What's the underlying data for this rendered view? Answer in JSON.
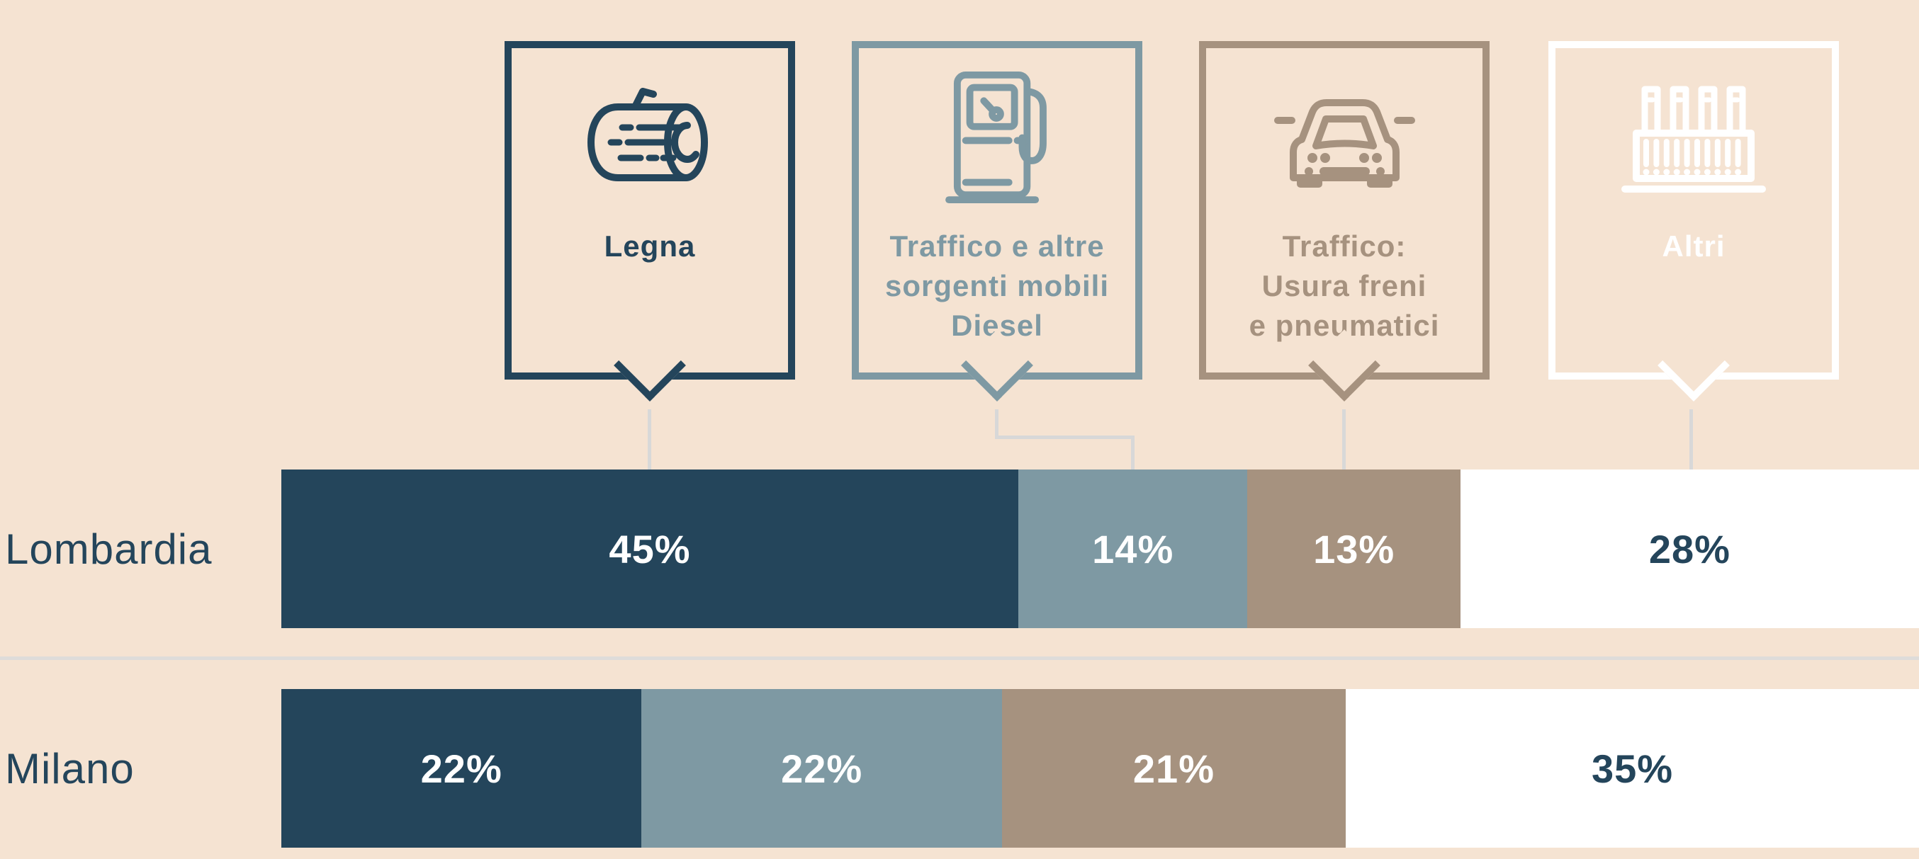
{
  "background_color": "#f5e3d2",
  "text_color": "#24455b",
  "divider_color": "#dedcda",
  "connector_color": "#d8d8d8",
  "legend": {
    "items": [
      {
        "name": "legna",
        "color": "#24455b",
        "icon": "log-icon",
        "lines": [
          "Legna"
        ]
      },
      {
        "name": "traffico-diesel",
        "color": "#7e99a3",
        "icon": "fuel-pump-icon",
        "lines": [
          "Traffico e altre",
          "sorgenti mobili",
          "Diesel"
        ]
      },
      {
        "name": "traffico-usura",
        "color": "#a6927f",
        "icon": "car-icon",
        "lines": [
          "Traffico:",
          "Usura freni",
          "e pneumatici"
        ]
      },
      {
        "name": "altri",
        "color": "#ffffff",
        "icon": "factory-icon",
        "lines": [
          "Altri"
        ]
      }
    ]
  },
  "rows": [
    {
      "label": "Lombardia",
      "segments": [
        {
          "text": "45%",
          "pct": 45,
          "bg": "#24455b",
          "fg": "#ffffff"
        },
        {
          "text": "14%",
          "pct": 14,
          "bg": "#7e99a3",
          "fg": "#ffffff"
        },
        {
          "text": "13%",
          "pct": 13,
          "bg": "#a6927f",
          "fg": "#ffffff"
        },
        {
          "text": "28%",
          "pct": 28,
          "bg": "#ffffff",
          "fg": "#24455b"
        }
      ]
    },
    {
      "label": "Milano",
      "segments": [
        {
          "text": "22%",
          "pct": 22,
          "bg": "#24455b",
          "fg": "#ffffff"
        },
        {
          "text": "22%",
          "pct": 22,
          "bg": "#7e99a3",
          "fg": "#ffffff"
        },
        {
          "text": "21%",
          "pct": 21,
          "bg": "#a6927f",
          "fg": "#ffffff"
        },
        {
          "text": "35%",
          "pct": 35,
          "bg": "#ffffff",
          "fg": "#24455b"
        }
      ]
    }
  ],
  "chart_data": {
    "type": "bar",
    "stacked": true,
    "orientation": "horizontal",
    "unit": "percent",
    "categories": [
      "Legna",
      "Traffico e altre sorgenti mobili Diesel",
      "Traffico: Usura freni e pneumatici",
      "Altri"
    ],
    "series": [
      {
        "name": "Lombardia",
        "values": [
          45,
          14,
          13,
          28
        ]
      },
      {
        "name": "Milano",
        "values": [
          22,
          22,
          21,
          35
        ]
      }
    ],
    "colors": [
      "#24455b",
      "#7e99a3",
      "#a6927f",
      "#ffffff"
    ],
    "legend_position": "top",
    "data_labels": true,
    "xlim": [
      0,
      100
    ],
    "grid": false
  }
}
